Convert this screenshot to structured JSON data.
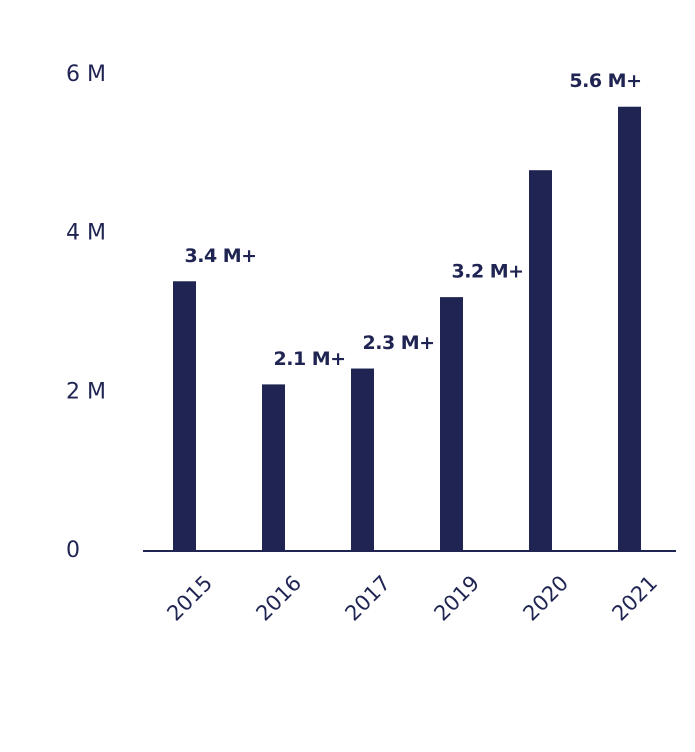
{
  "chart_data": {
    "type": "bar",
    "categories": [
      "2015",
      "2016",
      "2017",
      "2019",
      "2020",
      "2021"
    ],
    "values": [
      3.4,
      2.1,
      2.3,
      3.2,
      4.8,
      5.6
    ],
    "value_labels": [
      "3.4 M+",
      "2.1 M+",
      "2.3 M+",
      "3.2 M+",
      null,
      "5.6 M+"
    ],
    "color": "#1f2452",
    "ylim": [
      0,
      6
    ],
    "yticks": [
      0,
      {
        "value": 2,
        "label": "2 M"
      },
      {
        "value": 4,
        "label": "4 M"
      },
      {
        "value": 6,
        "label": "6 M"
      }
    ]
  }
}
